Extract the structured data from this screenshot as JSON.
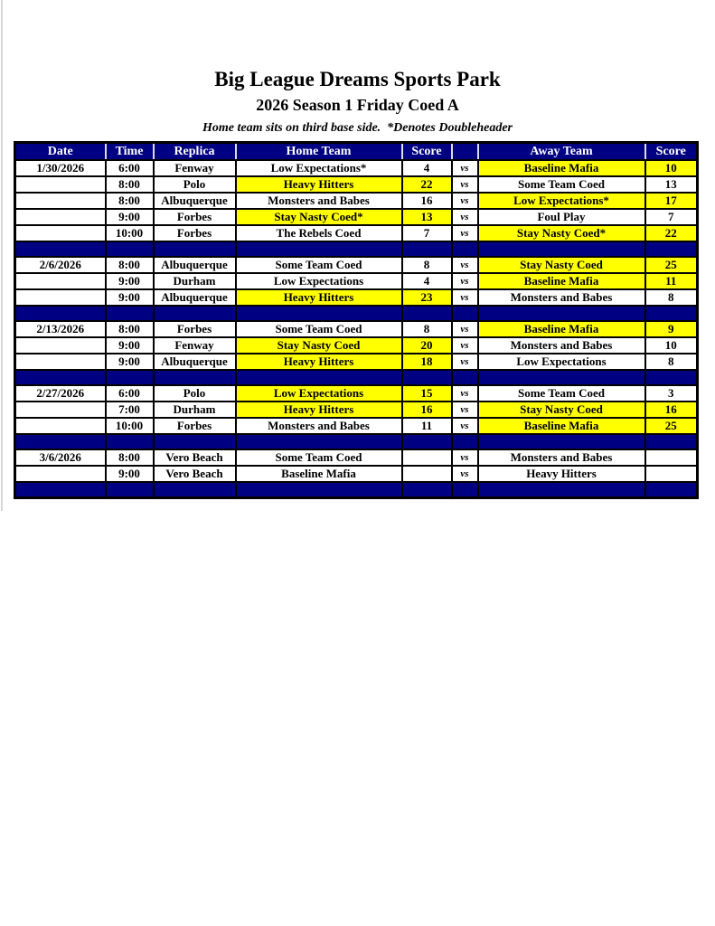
{
  "page": {
    "title": "Big League Dreams Sports Park",
    "subtitle": "2026 Season 1 Friday Coed A",
    "note": "Home team sits on third base side.  *Denotes Doubleheader"
  },
  "colors": {
    "navy": "#000082",
    "yellow": "#FFFF00",
    "header_text": "#FFFFFF",
    "body_text": "#000000"
  },
  "table": {
    "columns": [
      "Date",
      "Time",
      "Replica",
      "Home Team",
      "Score",
      "",
      "Away Team",
      "Score"
    ],
    "vs_label": "vs",
    "rows": [
      {
        "type": "game",
        "date": "1/30/2026",
        "time": "6:00",
        "replica": "Fenway",
        "home_team": "Low Expectations*",
        "home_score": "4",
        "away_team": "Baseline Mafia",
        "away_score": "10",
        "home_highlight": false,
        "away_highlight": true
      },
      {
        "type": "game",
        "date": "",
        "time": "8:00",
        "replica": "Polo",
        "home_team": "Heavy Hitters",
        "home_score": "22",
        "away_team": "Some Team Coed",
        "away_score": "13",
        "home_highlight": true,
        "away_highlight": false
      },
      {
        "type": "game",
        "date": "",
        "time": "8:00",
        "replica": "Albuquerque",
        "home_team": "Monsters and Babes",
        "home_score": "16",
        "away_team": "Low Expectations*",
        "away_score": "17",
        "home_highlight": false,
        "away_highlight": true
      },
      {
        "type": "game",
        "date": "",
        "time": "9:00",
        "replica": "Forbes",
        "home_team": "Stay Nasty Coed*",
        "home_score": "13",
        "away_team": "Foul Play",
        "away_score": "7",
        "home_highlight": true,
        "away_highlight": false
      },
      {
        "type": "game",
        "date": "",
        "time": "10:00",
        "replica": "Forbes",
        "home_team": "The Rebels Coed",
        "home_score": "7",
        "away_team": "Stay Nasty Coed*",
        "away_score": "22",
        "home_highlight": false,
        "away_highlight": true
      },
      {
        "type": "separator"
      },
      {
        "type": "game",
        "date": "2/6/2026",
        "time": "8:00",
        "replica": "Albuquerque",
        "home_team": "Some Team Coed",
        "home_score": "8",
        "away_team": "Stay Nasty Coed",
        "away_score": "25",
        "home_highlight": false,
        "away_highlight": true
      },
      {
        "type": "game",
        "date": "",
        "time": "9:00",
        "replica": "Durham",
        "home_team": "Low Expectations",
        "home_score": "4",
        "away_team": "Baseline Mafia",
        "away_score": "11",
        "home_highlight": false,
        "away_highlight": true
      },
      {
        "type": "game",
        "date": "",
        "time": "9:00",
        "replica": "Albuquerque",
        "home_team": "Heavy Hitters",
        "home_score": "23",
        "away_team": "Monsters and Babes",
        "away_score": "8",
        "home_highlight": true,
        "away_highlight": false
      },
      {
        "type": "separator"
      },
      {
        "type": "game",
        "date": "2/13/2026",
        "time": "8:00",
        "replica": "Forbes",
        "home_team": "Some Team Coed",
        "home_score": "8",
        "away_team": "Baseline Mafia",
        "away_score": "9",
        "home_highlight": false,
        "away_highlight": true
      },
      {
        "type": "game",
        "date": "",
        "time": "9:00",
        "replica": "Fenway",
        "home_team": "Stay Nasty Coed",
        "home_score": "20",
        "away_team": "Monsters and Babes",
        "away_score": "10",
        "home_highlight": true,
        "away_highlight": false
      },
      {
        "type": "game",
        "date": "",
        "time": "9:00",
        "replica": "Albuquerque",
        "home_team": "Heavy Hitters",
        "home_score": "18",
        "away_team": "Low Expectations",
        "away_score": "8",
        "home_highlight": true,
        "away_highlight": false
      },
      {
        "type": "separator"
      },
      {
        "type": "game",
        "date": "2/27/2026",
        "time": "6:00",
        "replica": "Polo",
        "home_team": "Low Expectations",
        "home_score": "15",
        "away_team": "Some Team Coed",
        "away_score": "3",
        "home_highlight": true,
        "away_highlight": false
      },
      {
        "type": "game",
        "date": "",
        "time": "7:00",
        "replica": "Durham",
        "home_team": "Heavy Hitters",
        "home_score": "16",
        "away_team": "Stay Nasty Coed",
        "away_score": "16",
        "home_highlight": true,
        "away_highlight": true
      },
      {
        "type": "game",
        "date": "",
        "time": "10:00",
        "replica": "Forbes",
        "home_team": "Monsters and Babes",
        "home_score": "11",
        "away_team": "Baseline Mafia",
        "away_score": "25",
        "home_highlight": false,
        "away_highlight": true
      },
      {
        "type": "separator"
      },
      {
        "type": "game",
        "date": "3/6/2026",
        "time": "8:00",
        "replica": "Vero Beach",
        "home_team": "Some Team Coed",
        "home_score": "",
        "away_team": "Monsters and Babes",
        "away_score": "",
        "home_highlight": false,
        "away_highlight": false
      },
      {
        "type": "game",
        "date": "",
        "time": "9:00",
        "replica": "Vero Beach",
        "home_team": "Baseline Mafia",
        "home_score": "",
        "away_team": "Heavy Hitters",
        "away_score": "",
        "home_highlight": false,
        "away_highlight": false
      },
      {
        "type": "separator"
      }
    ]
  }
}
